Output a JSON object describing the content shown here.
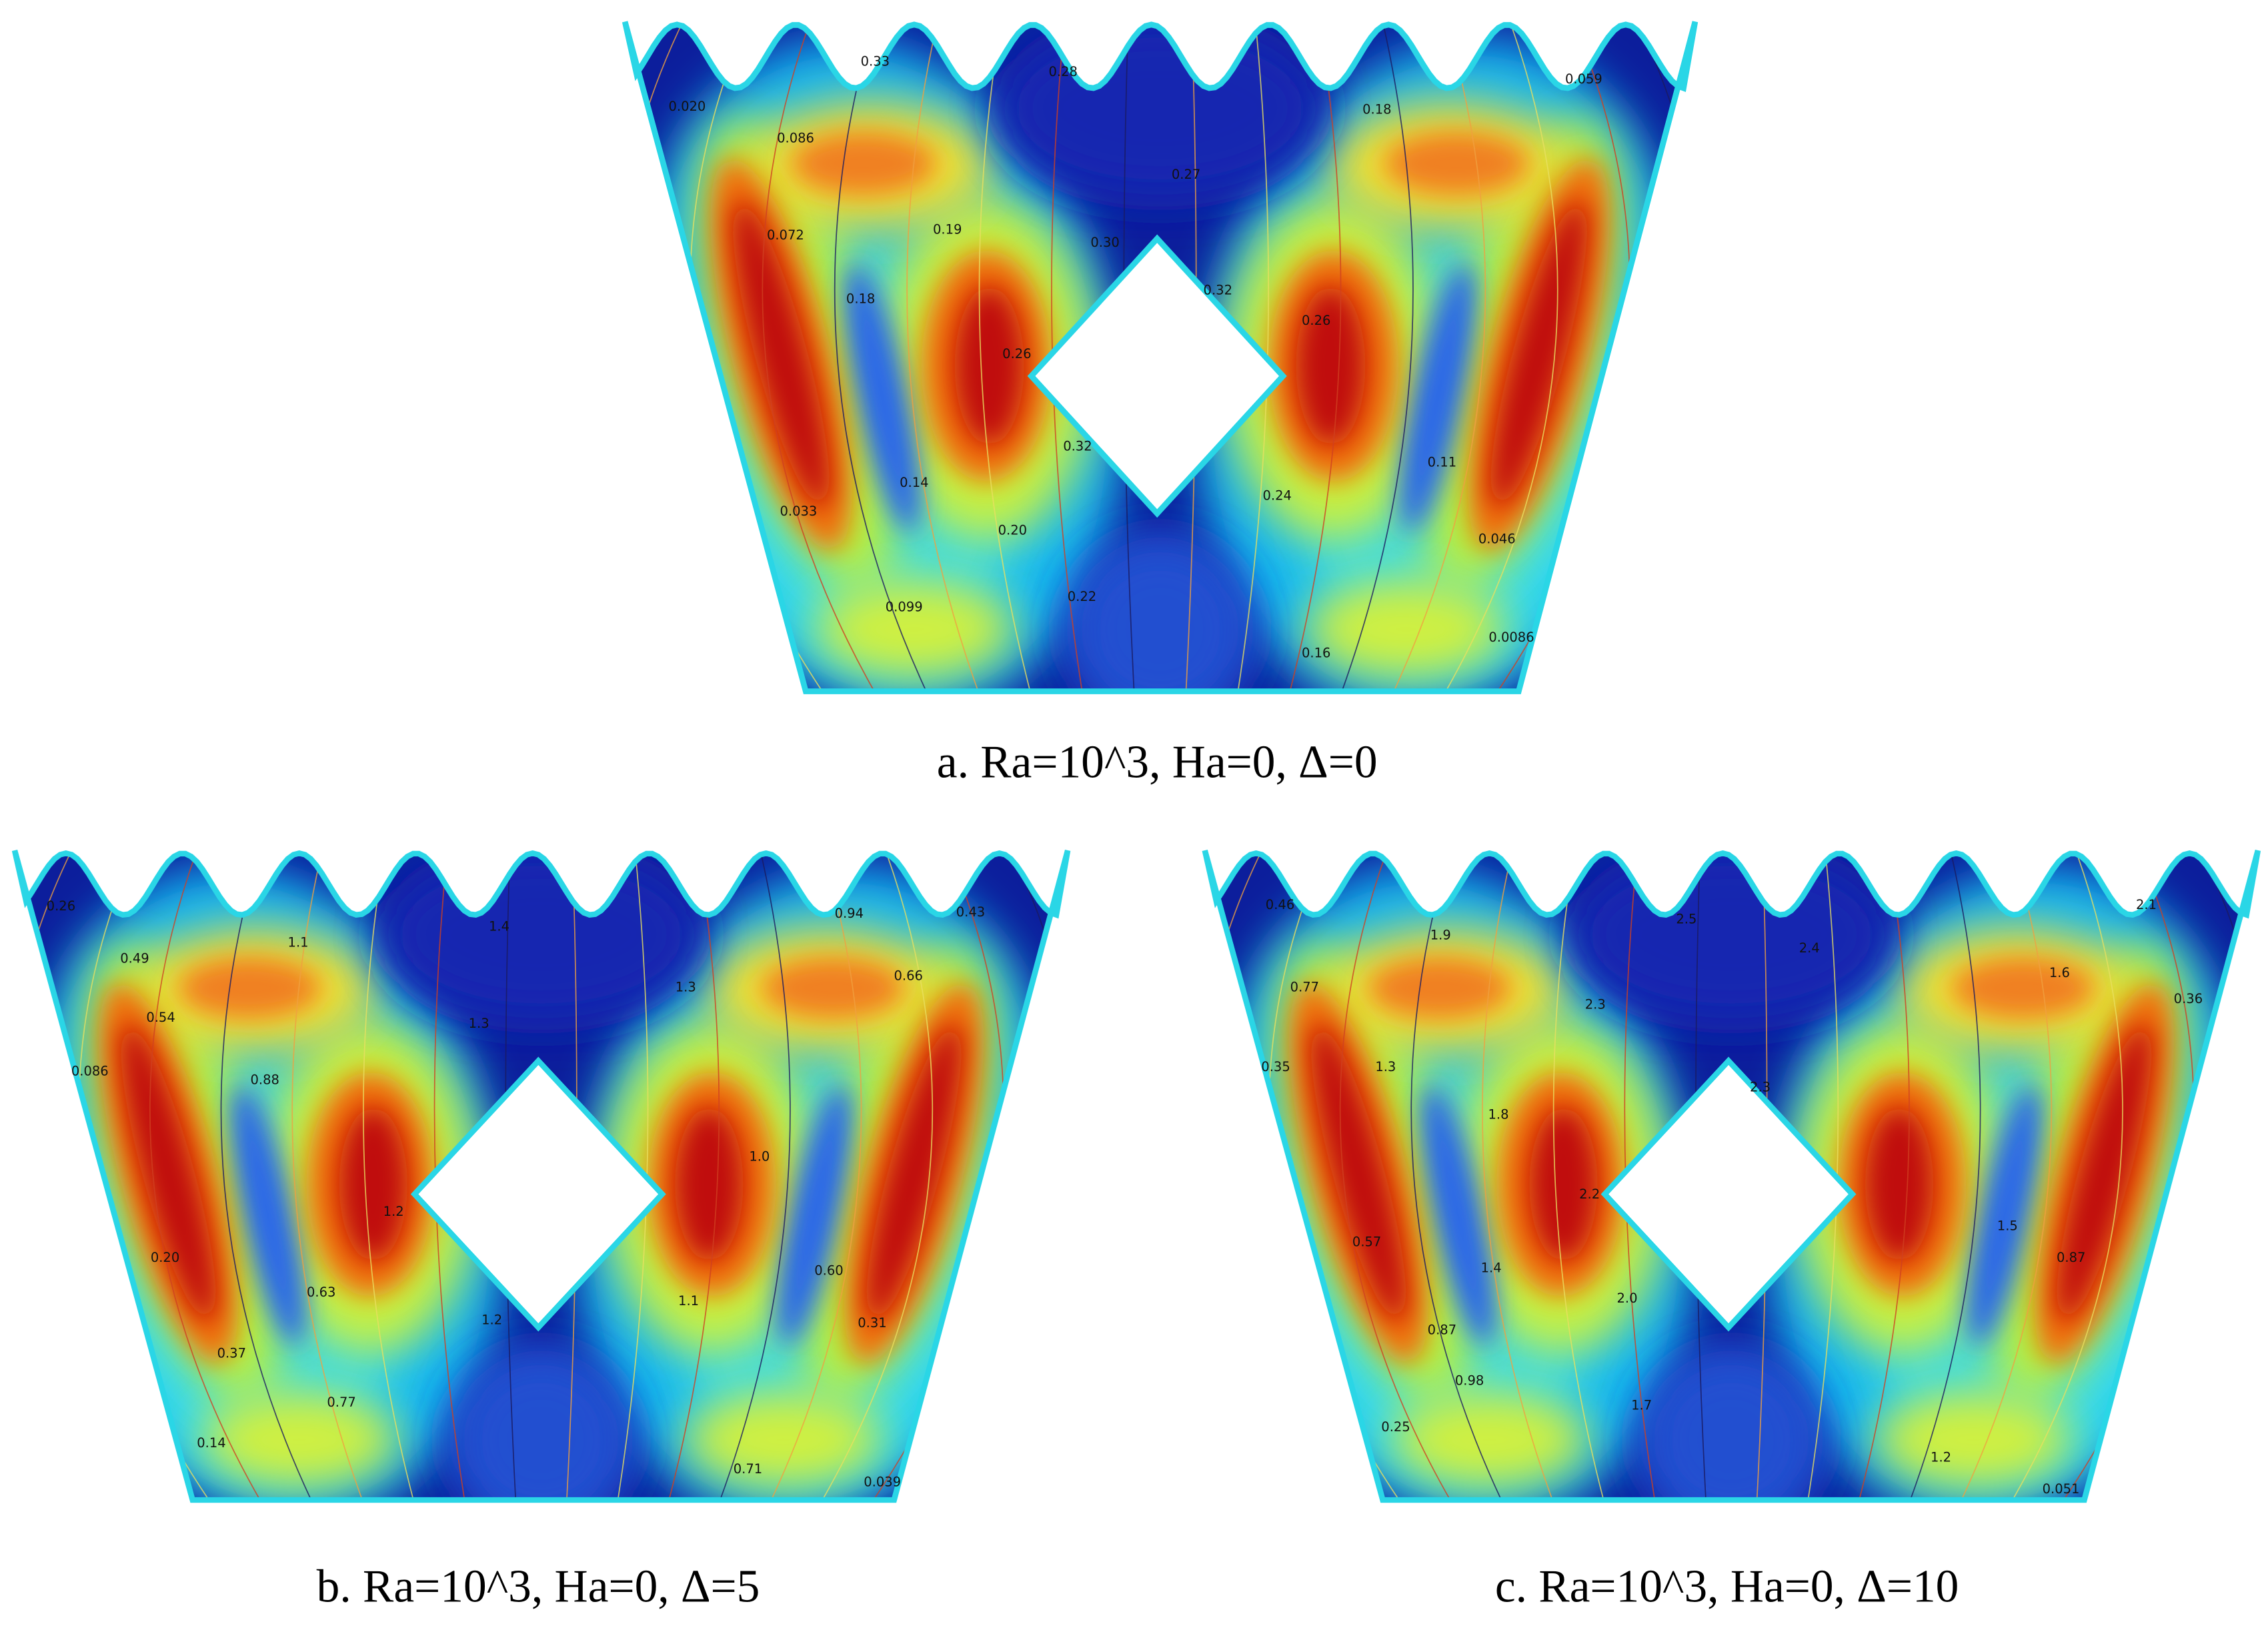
{
  "panels": [
    {
      "caption": "a. Ra=10^3, Ha=0, Δ=0",
      "contour_labels": [
        "0.33",
        "0.28",
        "0.020",
        "0.086",
        "0.059",
        "0.18",
        "0.27",
        "0.19",
        "0.072",
        "0.30",
        "0.32",
        "0.18",
        "0.26",
        "0.26",
        "0.32",
        "0.11",
        "0.14",
        "0.24",
        "0.033",
        "0.20",
        "0.046",
        "0.099",
        "0.22",
        "0.16",
        "0.0086"
      ]
    },
    {
      "caption": "b. Ra=10^3, Ha=0, Δ=5",
      "contour_labels": [
        "0.26",
        "1.1",
        "1.4",
        "0.94",
        "0.43",
        "0.49",
        "0.66",
        "0.54",
        "1.3",
        "1.3",
        "0.086",
        "0.88",
        "1.0",
        "1.2",
        "0.20",
        "0.63",
        "0.60",
        "1.2",
        "1.1",
        "0.31",
        "0.37",
        "0.77",
        "0.14",
        "0.71",
        "0.039"
      ]
    },
    {
      "caption": "c. Ra=10^3, Ha=0, Δ=10",
      "contour_labels": [
        "0.46",
        "1.9",
        "2.5",
        "2.4",
        "2.1",
        "0.77",
        "2.3",
        "1.6",
        "0.36",
        "0.35",
        "1.3",
        "1.8",
        "2.3",
        "2.2",
        "1.5",
        "0.57",
        "0.87",
        "1.4",
        "2.0",
        "0.87",
        "0.98",
        "1.7",
        "0.25",
        "1.2",
        "0.051"
      ]
    }
  ]
}
